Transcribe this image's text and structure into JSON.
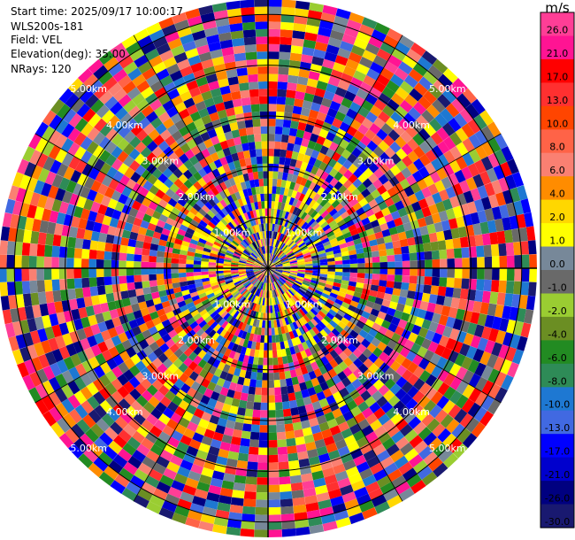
{
  "header": {
    "start_time": "Start time: 2025/09/17 10:00:17",
    "instrument": "WLS200s-181",
    "field": "Field: VEL",
    "elevation": "Elevation(deg): 35.00",
    "nrays": "NRays: 120"
  },
  "chart_data": {
    "type": "heatmap",
    "projection": "polar PPI",
    "field": "VEL",
    "nrays": 120,
    "range_rings_km": [
      1.0,
      2.0,
      3.0,
      4.0,
      5.0
    ],
    "ring_labels": [
      "1.00km",
      "2.00km",
      "3.00km",
      "4.00km",
      "5.00km"
    ],
    "max_range_km": 5.3,
    "azimuth_lines_deg": [
      0,
      30,
      60,
      90,
      120,
      150,
      180,
      210,
      240,
      270,
      300,
      330
    ],
    "values": "radial velocity per ray/gate, noisy; not individually readable",
    "colorbar": {
      "unit": "m/s",
      "ticks": [
        "26.0",
        "21.0",
        "17.0",
        "13.0",
        "10.0",
        "8.0",
        "6.0",
        "4.0",
        "2.0",
        "1.0",
        "0.0",
        "-1.0",
        "-2.0",
        "-4.0",
        "-6.0",
        "-8.0",
        "-10.0",
        "-13.0",
        "-17.0",
        "-21.0",
        "-26.0",
        "-30.0"
      ],
      "colors": [
        "#ff3e96",
        "#ff1493",
        "#ff0000",
        "#ff3030",
        "#ff4500",
        "#ff6347",
        "#fa8072",
        "#ff8c00",
        "#ffd700",
        "#ffff00",
        "#778899",
        "#696969",
        "#9acd32",
        "#6b8e23",
        "#228b22",
        "#2e8b57",
        "#1e78d2",
        "#4169e1",
        "#0000ff",
        "#0000cd",
        "#000080",
        "#191970"
      ]
    }
  }
}
